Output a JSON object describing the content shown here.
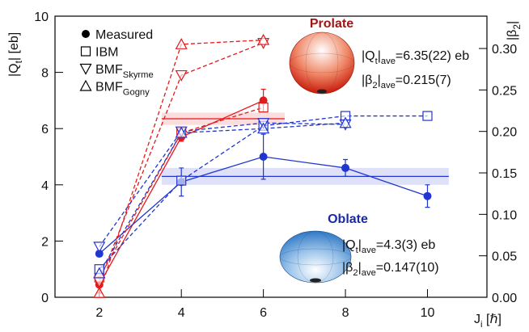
{
  "chart_data": {
    "type": "line",
    "x": [
      2,
      4,
      6,
      8,
      10
    ],
    "xlim": [
      0.92,
      11.45
    ],
    "xticks": [
      2,
      4,
      6,
      8,
      10
    ],
    "ylim": [
      0,
      10
    ],
    "yticks": [
      0,
      2,
      4,
      6,
      8,
      10
    ],
    "y2lim": [
      0,
      0.339
    ],
    "y2ticks": [
      {
        "value": 0,
        "label": "0.00"
      },
      {
        "value": 0.05,
        "label": "0.05"
      },
      {
        "value": 0.1,
        "label": "0.10"
      },
      {
        "value": 0.15,
        "label": "0.15"
      },
      {
        "value": 0.2,
        "label": "0.20"
      },
      {
        "value": 0.25,
        "label": "0.25"
      },
      {
        "value": 0.3,
        "label": "0.30"
      }
    ],
    "xlabel": [
      {
        "t": "J"
      },
      {
        "t": "i",
        "sub": true
      },
      {
        "t": " [ℏ]"
      }
    ],
    "ylabel": [
      {
        "t": "|Q"
      },
      {
        "t": "t",
        "sub": true
      },
      {
        "t": "| [eb]"
      }
    ],
    "y2label": [
      {
        "t": "|β"
      },
      {
        "t": "2",
        "sub": true
      },
      {
        "t": "|"
      }
    ],
    "series": [
      {
        "name": [
          {
            "t": "Measured"
          }
        ],
        "marker": "circle",
        "dashed": false,
        "prolate": {
          "values": [
            0.45,
            5.7,
            7.0,
            null,
            null
          ],
          "errors": [
            0.3,
            0.15,
            0.4,
            null,
            null
          ]
        },
        "oblate": {
          "values": [
            1.55,
            4.1,
            5.0,
            4.6,
            3.6
          ],
          "errors": [
            0.1,
            0.5,
            0.8,
            0.3,
            0.4
          ]
        }
      },
      {
        "name": [
          {
            "t": "IBM"
          }
        ],
        "marker": "square",
        "dashed": true,
        "prolate": {
          "values": [
            0.7,
            5.85,
            6.75,
            null,
            null
          ]
        },
        "oblate": {
          "values": [
            1.0,
            4.15,
            6.1,
            6.45,
            6.45
          ]
        }
      },
      {
        "name": [
          {
            "t": "BMF"
          },
          {
            "t": "Skyrme",
            "sub": true
          }
        ],
        "marker": "triangle-down",
        "dashed": true,
        "prolate": {
          "values": [
            0.55,
            7.9,
            9.05,
            null,
            null
          ]
        },
        "oblate": {
          "values": [
            1.8,
            5.9,
            6.2,
            6.15,
            null
          ]
        }
      },
      {
        "name": [
          {
            "t": "BMF"
          },
          {
            "t": "Gogny",
            "sub": true
          }
        ],
        "marker": "triangle-up",
        "dashed": true,
        "prolate": {
          "values": [
            0.15,
            9.0,
            9.15,
            null,
            null
          ]
        },
        "oblate": {
          "values": [
            0.85,
            5.85,
            6.0,
            6.2,
            null
          ]
        }
      }
    ],
    "shapes": {
      "prolate": {
        "color": "#e31a1c",
        "title_color": "#a31515",
        "title": "Prolate",
        "band": {
          "center": 6.35,
          "halfwidth": 0.22,
          "x": [
            3.52,
            6.52
          ]
        },
        "notes": [
          [
            {
              "t": "|Q"
            },
            {
              "t": "t",
              "sub": true
            },
            {
              "t": "|"
            },
            {
              "t": "ave",
              "sub": true
            },
            {
              "t": "=6.35(22) eb"
            }
          ],
          [
            {
              "t": "|β"
            },
            {
              "t": "2",
              "sub": true
            },
            {
              "t": "|"
            },
            {
              "t": "ave",
              "sub": true
            },
            {
              "t": "=0.215(7)"
            }
          ]
        ]
      },
      "oblate": {
        "color": "#2135d0",
        "title_color": "#1c2aa0",
        "title": "Oblate",
        "band": {
          "center": 4.3,
          "halfwidth": 0.3,
          "x": [
            3.52,
            10.52
          ]
        },
        "notes": [
          [
            {
              "t": "|Q"
            },
            {
              "t": "t",
              "sub": true
            },
            {
              "t": "|"
            },
            {
              "t": "ave",
              "sub": true
            },
            {
              "t": "=4.3(3) eb"
            }
          ],
          [
            {
              "t": "|β"
            },
            {
              "t": "2",
              "sub": true
            },
            {
              "t": "|"
            },
            {
              "t": "ave",
              "sub": true
            },
            {
              "t": "=0.147(10)"
            }
          ]
        ]
      }
    }
  }
}
